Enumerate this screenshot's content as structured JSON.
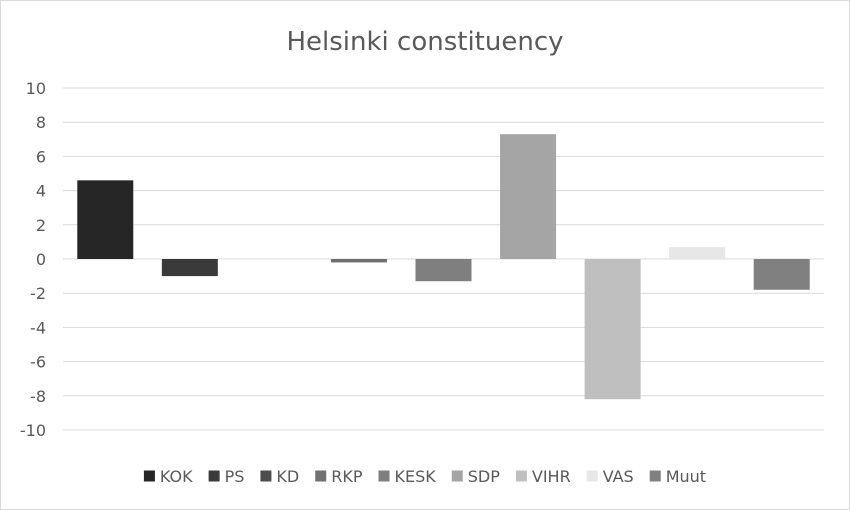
{
  "chart_data": {
    "type": "bar",
    "title": "Helsinki constituency",
    "xlabel": "",
    "ylabel": "",
    "ylim": [
      -10,
      10
    ],
    "yticks": [
      10,
      8,
      6,
      4,
      2,
      0,
      -2,
      -4,
      -6,
      -8,
      -10
    ],
    "grid": true,
    "legend": "bottom",
    "series": [
      {
        "name": "KOK",
        "value": 4.6,
        "color": "#262626"
      },
      {
        "name": "PS",
        "value": -1.0,
        "color": "#3a3a3a"
      },
      {
        "name": "KD",
        "value": 0.0,
        "color": "#4d4d4d"
      },
      {
        "name": "RKP",
        "value": -0.2,
        "color": "#707070"
      },
      {
        "name": "KESK",
        "value": -1.3,
        "color": "#7f7f7f"
      },
      {
        "name": "SDP",
        "value": 7.3,
        "color": "#a5a5a5"
      },
      {
        "name": "VIHR",
        "value": -8.2,
        "color": "#bfbfbf"
      },
      {
        "name": "VAS",
        "value": 0.7,
        "color": "#e7e7e7"
      },
      {
        "name": "Muut",
        "value": -1.8,
        "color": "#808080"
      }
    ]
  }
}
